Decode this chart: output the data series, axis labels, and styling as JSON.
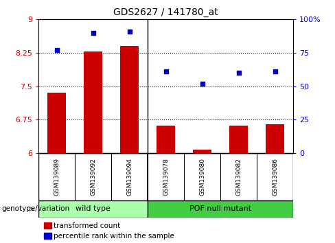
{
  "title": "GDS2627 / 141780_at",
  "samples": [
    "GSM139089",
    "GSM139092",
    "GSM139094",
    "GSM139078",
    "GSM139080",
    "GSM139082",
    "GSM139086"
  ],
  "transformed_count": [
    7.35,
    8.28,
    8.4,
    6.62,
    6.08,
    6.62,
    6.65
  ],
  "percentile_rank": [
    77,
    90,
    91,
    61,
    52,
    60,
    61
  ],
  "ylim_left": [
    6.0,
    9.0
  ],
  "ylim_right": [
    0,
    100
  ],
  "yticks_left": [
    6.0,
    6.75,
    7.5,
    8.25,
    9.0
  ],
  "yticks_right": [
    0,
    25,
    50,
    75,
    100
  ],
  "ytick_labels_left": [
    "6",
    "6.75",
    "7.5",
    "8.25",
    "9"
  ],
  "ytick_labels_right": [
    "0",
    "25",
    "50",
    "75",
    "100%"
  ],
  "bar_color": "#cc0000",
  "scatter_color": "#0000cc",
  "group_label_wt": "wild type",
  "group_label_mut": "POF null mutant",
  "group_color_wt": "#aaffaa",
  "group_color_mut": "#44cc44",
  "legend_bar_label": "transformed count",
  "legend_scatter_label": "percentile rank within the sample",
  "genotype_label": "genotype/variation",
  "left_tick_color": "#cc0000",
  "right_tick_color": "#0000cc",
  "background_color": "#ffffff",
  "tick_area_color": "#c8c8c8",
  "bar_width": 0.5,
  "figsize": [
    4.88,
    3.54
  ],
  "dpi": 100
}
